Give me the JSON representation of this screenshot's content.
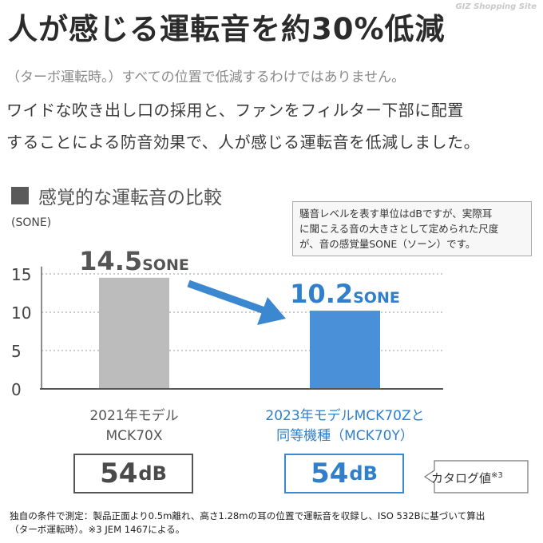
{
  "header": {
    "title": "人が感じる運転音を約30%低減",
    "watermark": "GIZ Shopping Site",
    "note": "（ターボ運転時。）すべての位置で低減するわけではありません。",
    "lead_lines": [
      "ワイドな吹き出し口の採用と、ファンをフィルター下部に配置",
      "することによる防音効果で、人が感じる運転音を低減しました。"
    ]
  },
  "section": {
    "title": "感覚的な運転音の比較",
    "explain_lines": [
      "騒音レベルを表す単位はdBですが、実際耳",
      "に聞こえる音の大きさとして定められた尺度",
      "が、音の感覚量SONE（ソーン）です。"
    ]
  },
  "chart_data": {
    "type": "bar",
    "ylabel": "(SONE)",
    "ylim": [
      0,
      17
    ],
    "yticks": [
      0,
      5,
      10,
      15
    ],
    "grid": true,
    "categories": [
      [
        "2021年モデル",
        "MCK70X"
      ],
      [
        "2023年モデルMCK70Zと",
        "同等機種（MCK70Y）"
      ]
    ],
    "values": [
      14.5,
      10.2
    ],
    "value_labels": [
      {
        "num": "14.5",
        "unit": "SONE"
      },
      {
        "num": "10.2",
        "unit": "SONE"
      }
    ],
    "colors": {
      "bar_old": "#bcbcbc",
      "bar_new": "#4a90d9",
      "label_old": "#555555",
      "label_new": "#2f7fcb",
      "arrow": "#3b88d0",
      "grid": "#9a9a9a"
    }
  },
  "db_boxes": [
    {
      "num": "54",
      "unit": "dB"
    },
    {
      "num": "54",
      "unit": "dB"
    }
  ],
  "catalog": {
    "label": "カタログ値",
    "mark": "※3"
  },
  "footnote_lines": [
    "独自の条件で測定：製品正面より0.5m離れ、高さ1.28mの耳の位置で運転音を収録し、ISO 532Bに基づいて算出",
    "（ターボ運転時）。※3 JEM 1467による。"
  ]
}
